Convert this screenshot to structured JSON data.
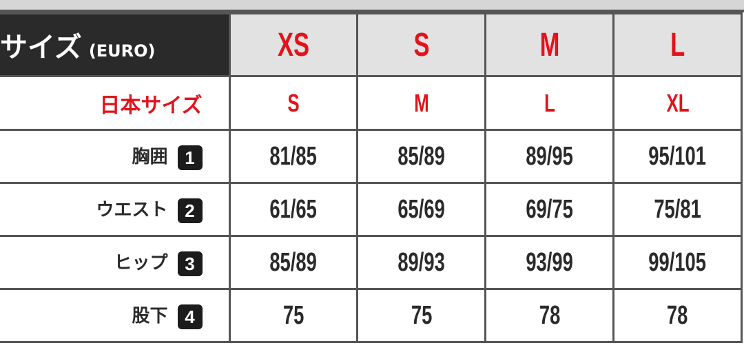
{
  "header": {
    "title": "サイズ",
    "title_suffix": "(EURO)",
    "sizes": [
      "XS",
      "S",
      "M",
      "L"
    ]
  },
  "japan": {
    "label": "日本サイズ",
    "values": [
      "S",
      "M",
      "L",
      "XL"
    ]
  },
  "rows": [
    {
      "label": "胸囲",
      "num": "1",
      "values": [
        "81/85",
        "85/89",
        "89/95",
        "95/101"
      ]
    },
    {
      "label": "ウエスト",
      "num": "2",
      "values": [
        "61/65",
        "65/69",
        "69/75",
        "75/81"
      ]
    },
    {
      "label": "ヒップ",
      "num": "3",
      "values": [
        "85/89",
        "89/93",
        "93/99",
        "99/105"
      ]
    },
    {
      "label": "股下",
      "num": "4",
      "values": [
        "75",
        "75",
        "78",
        "78"
      ]
    }
  ],
  "colors": {
    "accent": "#e0141b",
    "header_dark": "#2b2a2a",
    "header_gray": "#e2e2e2"
  }
}
